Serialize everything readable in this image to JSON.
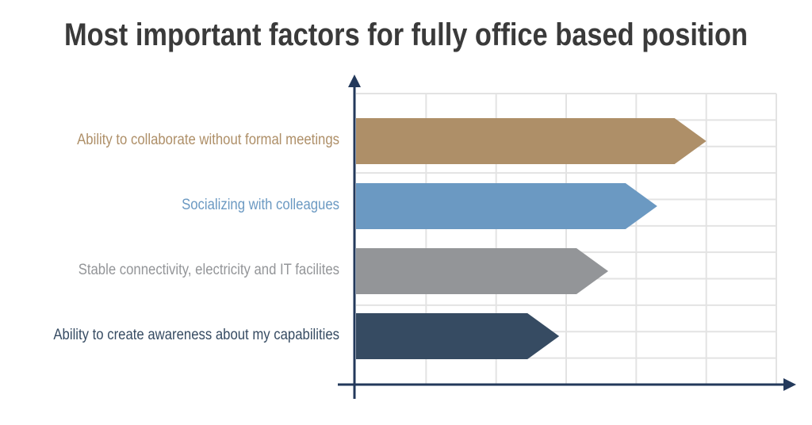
{
  "title": "Most important factors for fully office based position",
  "chart_data": {
    "type": "bar",
    "orientation": "horizontal",
    "title": "Most important factors for fully office based position",
    "categories": [
      "Ability to collaborate without formal meetings",
      "Socializing with colleagues",
      "Stable connectivity, electricity and IT facilites",
      "Ability to create awareness about my capabilities"
    ],
    "values": [
      5,
      4.3,
      3.6,
      2.9
    ],
    "colors": [
      "#ae8f68",
      "#6b99c2",
      "#939598",
      "#364b62"
    ],
    "xlim": [
      0,
      6
    ],
    "grid": true,
    "xlabel": "",
    "ylabel": ""
  }
}
